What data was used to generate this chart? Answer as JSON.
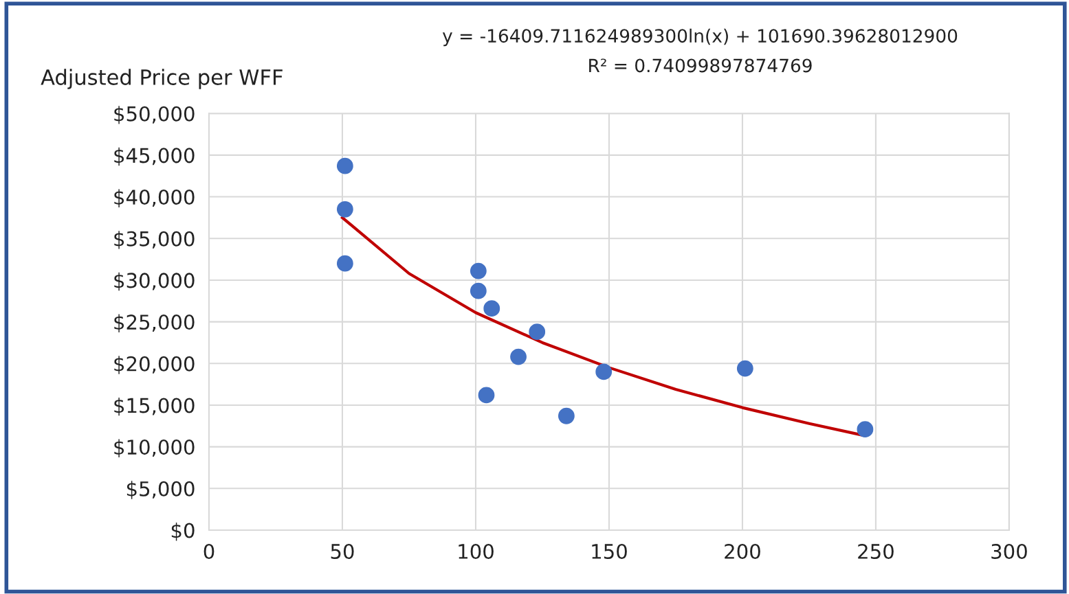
{
  "chart_data": {
    "type": "scatter",
    "ylabel": "Adjusted Price per WFF",
    "annotations": [
      "y = -16409.711624989300ln(x) + 101690.39628012900",
      "R² = 0.74099897874769"
    ],
    "xlim": [
      0,
      300
    ],
    "xticks": [
      0,
      50,
      100,
      150,
      200,
      250,
      300
    ],
    "ylim": [
      0,
      50000
    ],
    "yticks": [
      {
        "value": 0,
        "label": "$0"
      },
      {
        "value": 5000,
        "label": "$5,000"
      },
      {
        "value": 10000,
        "label": "$10,000"
      },
      {
        "value": 15000,
        "label": "$15,000"
      },
      {
        "value": 20000,
        "label": "$20,000"
      },
      {
        "value": 25000,
        "label": "$25,000"
      },
      {
        "value": 30000,
        "label": "$30,000"
      },
      {
        "value": 35000,
        "label": "$35,000"
      },
      {
        "value": 40000,
        "label": "$40,000"
      },
      {
        "value": 45000,
        "label": "$45,000"
      },
      {
        "value": 50000,
        "label": "$50,000"
      }
    ],
    "grid": true,
    "series": [
      {
        "marker": "circle",
        "color": "#4472c4",
        "x": [
          51,
          51,
          51,
          101,
          101,
          106,
          123,
          116,
          104,
          134,
          148,
          201,
          246
        ],
        "values": [
          43700,
          38500,
          32000,
          31100,
          28700,
          26600,
          23800,
          20800,
          16200,
          13700,
          19000,
          19400,
          12100
        ]
      },
      {
        "type": "line",
        "color": "#c00000",
        "line_style": "solid",
        "x": [
          50,
          75,
          100,
          125,
          150,
          175,
          200,
          225,
          245
        ],
        "values": [
          37500,
          30800,
          26100,
          22500,
          19500,
          16900,
          14700,
          12800,
          11400
        ]
      }
    ]
  }
}
